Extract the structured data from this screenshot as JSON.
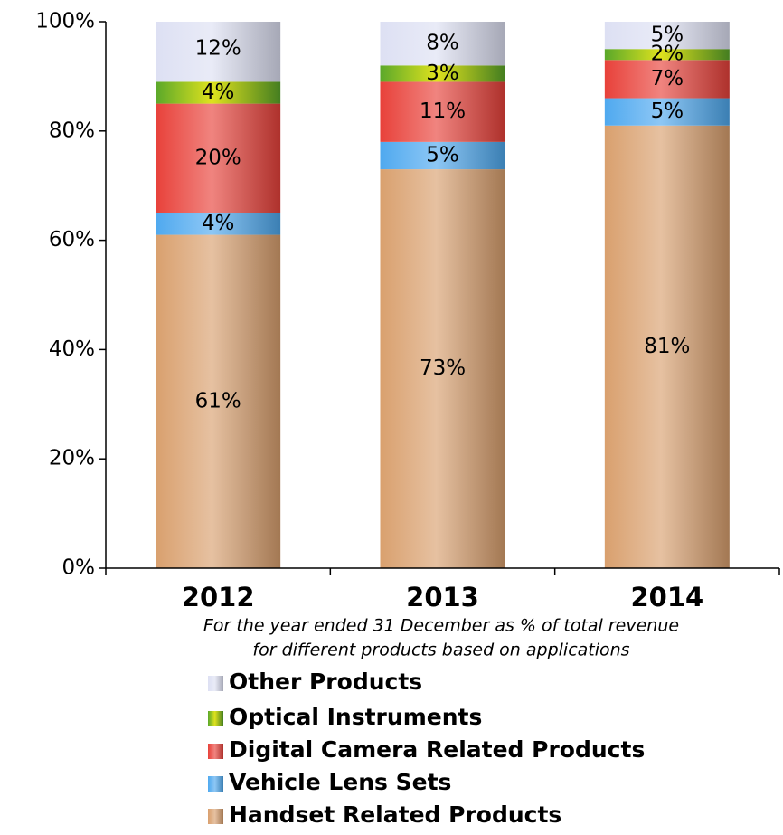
{
  "chart_data": {
    "type": "stacked_bar",
    "categories": [
      "2012",
      "2013",
      "2014"
    ],
    "series": [
      {
        "name": "Handset Related Products",
        "color": "#d9a06e",
        "values": [
          61,
          73,
          81
        ],
        "value_labels": [
          "61%",
          "73%",
          "81%"
        ]
      },
      {
        "name": "Vehicle Lens Sets",
        "color": "#4fa9ef",
        "values": [
          4,
          5,
          5
        ],
        "value_labels": [
          "4%",
          "5%",
          "5%"
        ]
      },
      {
        "name": "Digital Camera Related Products",
        "color": "#e8413a",
        "values": [
          20,
          11,
          7
        ],
        "value_labels": [
          "20%",
          "11%",
          "7%"
        ]
      },
      {
        "name": "Optical Instruments",
        "color": "#5aa82a",
        "values": [
          4,
          3,
          2
        ],
        "value_labels": [
          "4%",
          "3%",
          "2%"
        ]
      },
      {
        "name": "Other Products",
        "color": "#dde0f3",
        "values": [
          12,
          8,
          5
        ],
        "value_labels": [
          "12%",
          "8%",
          "5%"
        ]
      }
    ],
    "ylim": [
      0,
      100
    ],
    "yticks": [
      {
        "value": 0,
        "label": "0%"
      },
      {
        "value": 20,
        "label": "20%"
      },
      {
        "value": 40,
        "label": "40%"
      },
      {
        "value": 60,
        "label": "60%"
      },
      {
        "value": 80,
        "label": "80%"
      },
      {
        "value": 100,
        "label": "100%"
      }
    ],
    "annotation": [
      "For the year ended 31 December as % of total revenue",
      "for different products based on applications"
    ]
  }
}
